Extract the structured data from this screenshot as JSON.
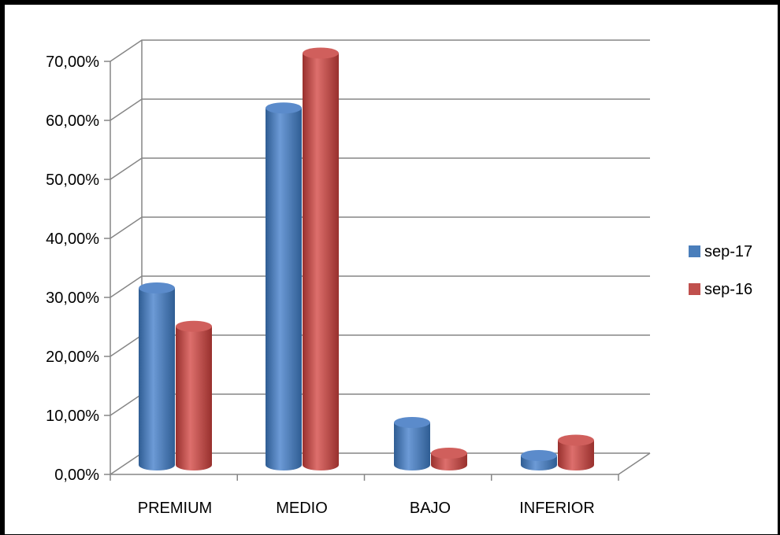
{
  "chart_data": {
    "type": "bar",
    "categories": [
      "PREMIUM",
      "MEDIO",
      "BAJO",
      "INFERIOR"
    ],
    "series": [
      {
        "name": "sep-17",
        "values": [
          30.0,
          60.5,
          7.2,
          1.6
        ],
        "color": "#4a7ebb"
      },
      {
        "name": "sep-16",
        "values": [
          23.5,
          69.8,
          2.0,
          4.2
        ],
        "color": "#c0504d"
      }
    ],
    "ylim": [
      0,
      70
    ],
    "yticks": [
      "0,00%",
      "10,00%",
      "20,00%",
      "30,00%",
      "40,00%",
      "50,00%",
      "60,00%",
      "70,00%"
    ],
    "grid": true,
    "legend": "right",
    "style": "3d-cylinder"
  }
}
